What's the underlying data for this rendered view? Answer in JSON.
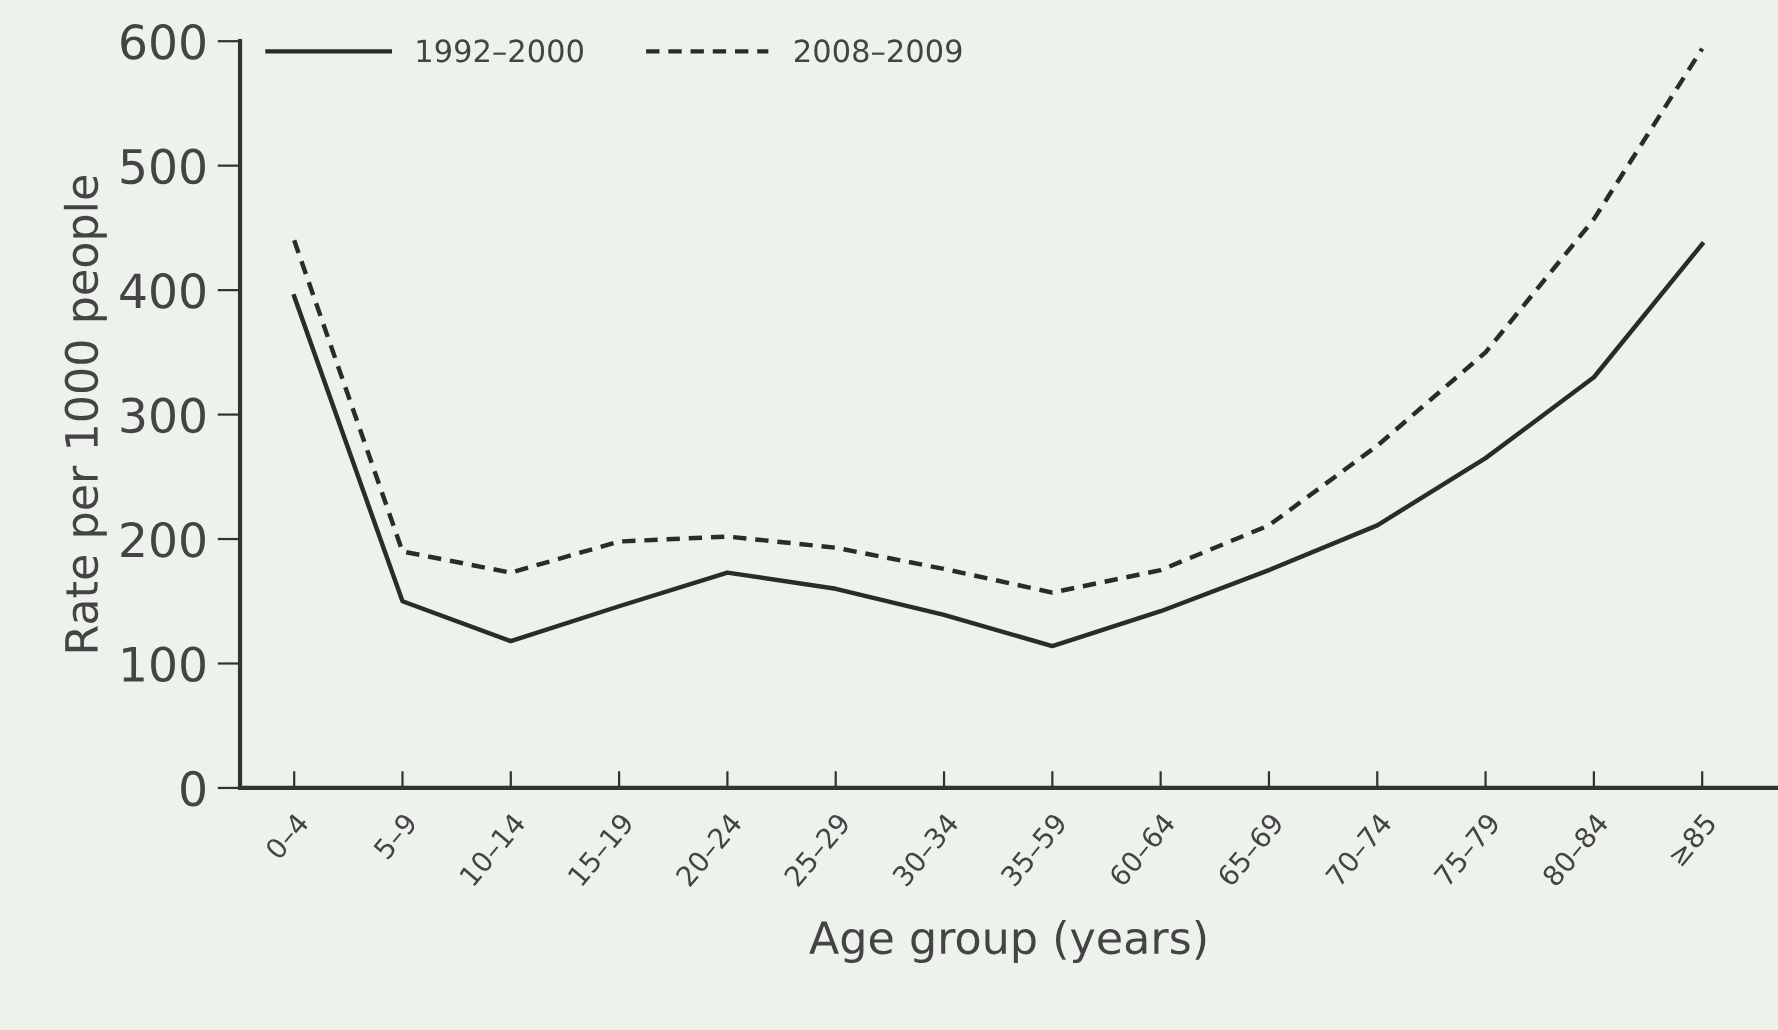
{
  "chart_data": {
    "type": "line",
    "xlabel": "Age group (years)",
    "ylabel": "Rate per 1000 people",
    "categories": [
      "0–4",
      "5–9",
      "10–14",
      "15–19",
      "20–24",
      "25–29",
      "30–34",
      "35–59",
      "60–64",
      "65–69",
      "70–74",
      "75–79",
      "80–84",
      "≥85"
    ],
    "series": [
      {
        "name": "1992–2000",
        "color": "#2b2b2b",
        "line_style": "solid",
        "values": [
          395,
          150,
          118,
          146,
          173,
          160,
          139,
          114,
          142,
          175,
          211,
          265,
          330,
          437
        ]
      },
      {
        "name": "2008–2009",
        "color": "#2b2b2b",
        "line_style": "dashed",
        "values": [
          440,
          190,
          173,
          198,
          202,
          193,
          176,
          157,
          175,
          211,
          275,
          350,
          457,
          594
        ]
      }
    ],
    "ylim": [
      0,
      600
    ],
    "yticks": [
      0,
      100,
      200,
      300,
      400,
      500,
      600
    ],
    "grid": false,
    "legend": "top left",
    "marker": "none"
  }
}
